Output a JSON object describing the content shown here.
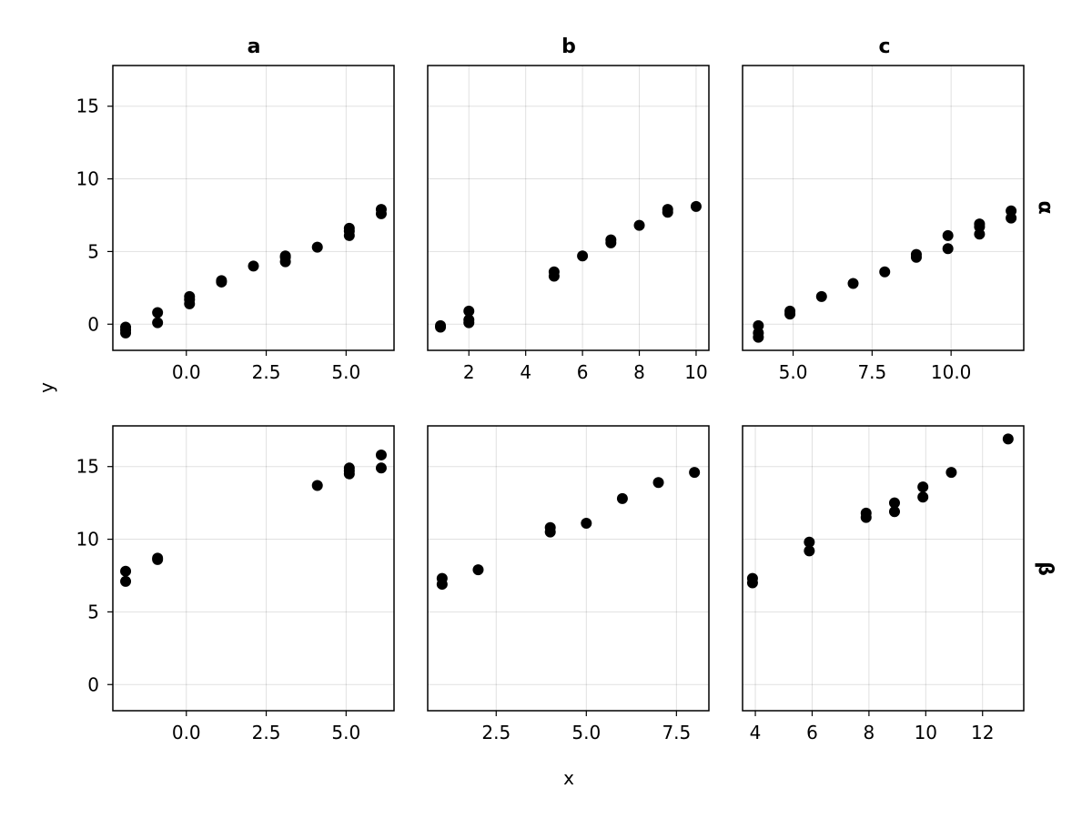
{
  "figure": {
    "xlabel": "x",
    "ylabel": "y",
    "column_titles": [
      "a",
      "b",
      "c"
    ],
    "row_titles": [
      "α",
      "β"
    ]
  },
  "chart_data": [
    {
      "type": "scatter",
      "column": "a",
      "row": "α",
      "xlim": [
        -2.3,
        6.5
      ],
      "ylim": [
        -1.8,
        17.8
      ],
      "xticks": [
        0.0,
        2.5,
        5.0
      ],
      "xtick_labels": [
        "0.0",
        "2.5",
        "5.0"
      ],
      "yticks": [
        0,
        5,
        10,
        15
      ],
      "ytick_labels": [
        "0",
        "5",
        "10",
        "15"
      ],
      "show_yticks": true,
      "grid": true,
      "x": [
        -1.9,
        -1.9,
        -1.9,
        -0.9,
        -0.9,
        0.1,
        0.1,
        0.1,
        1.1,
        1.1,
        2.1,
        3.1,
        3.1,
        3.1,
        4.1,
        5.1,
        5.1,
        5.1,
        6.1,
        6.1
      ],
      "y": [
        -0.6,
        -0.2,
        -0.4,
        0.1,
        0.8,
        1.4,
        1.7,
        1.9,
        2.9,
        3.0,
        4.0,
        4.3,
        4.6,
        4.7,
        5.3,
        6.1,
        6.4,
        6.6,
        7.6,
        7.9
      ]
    },
    {
      "type": "scatter",
      "column": "b",
      "row": "α",
      "xlim": [
        0.55,
        10.45
      ],
      "ylim": [
        -1.8,
        17.8
      ],
      "xticks": [
        2,
        4,
        6,
        8,
        10
      ],
      "xtick_labels": [
        "2",
        "4",
        "6",
        "8",
        "10"
      ],
      "yticks": [
        0,
        5,
        10,
        15
      ],
      "ytick_labels": [
        "0",
        "5",
        "10",
        "15"
      ],
      "show_yticks": false,
      "grid": true,
      "x": [
        1,
        1,
        2,
        2,
        2,
        5,
        5,
        6,
        7,
        7,
        8,
        9,
        9,
        10
      ],
      "y": [
        -0.2,
        -0.1,
        0.1,
        0.3,
        0.9,
        3.3,
        3.6,
        4.7,
        5.6,
        5.8,
        6.8,
        7.7,
        7.9,
        8.1
      ]
    },
    {
      "type": "scatter",
      "column": "c",
      "row": "α",
      "xlim": [
        3.4,
        12.3
      ],
      "ylim": [
        -1.8,
        17.8
      ],
      "xticks": [
        5.0,
        7.5,
        10.0
      ],
      "xtick_labels": [
        "5.0",
        "7.5",
        "10.0"
      ],
      "yticks": [
        0,
        5,
        10,
        15
      ],
      "ytick_labels": [
        "0",
        "5",
        "10",
        "15"
      ],
      "show_yticks": false,
      "grid": true,
      "x": [
        3.9,
        3.9,
        3.9,
        4.9,
        4.9,
        5.9,
        6.9,
        7.9,
        8.9,
        8.9,
        9.9,
        9.9,
        10.9,
        10.9,
        10.9,
        11.9,
        11.9
      ],
      "y": [
        -0.9,
        -0.6,
        -0.1,
        0.7,
        0.9,
        1.9,
        2.8,
        3.6,
        4.6,
        4.8,
        5.2,
        6.1,
        6.2,
        6.7,
        6.9,
        7.3,
        7.8
      ]
    },
    {
      "type": "scatter",
      "column": "a",
      "row": "β",
      "xlim": [
        -2.3,
        6.5
      ],
      "ylim": [
        -1.8,
        17.8
      ],
      "xticks": [
        0.0,
        2.5,
        5.0
      ],
      "xtick_labels": [
        "0.0",
        "2.5",
        "5.0"
      ],
      "yticks": [
        0,
        5,
        10,
        15
      ],
      "ytick_labels": [
        "0",
        "5",
        "10",
        "15"
      ],
      "show_yticks": true,
      "grid": true,
      "x": [
        -1.9,
        -1.9,
        -0.9,
        -0.9,
        4.1,
        5.1,
        5.1,
        5.1,
        6.1,
        6.1
      ],
      "y": [
        7.1,
        7.8,
        8.6,
        8.7,
        13.7,
        14.5,
        14.7,
        14.9,
        14.9,
        15.8
      ]
    },
    {
      "type": "scatter",
      "column": "b",
      "row": "β",
      "xlim": [
        0.6,
        8.4
      ],
      "ylim": [
        -1.8,
        17.8
      ],
      "xticks": [
        2.5,
        5.0,
        7.5
      ],
      "xtick_labels": [
        "2.5",
        "5.0",
        "7.5"
      ],
      "yticks": [
        0,
        5,
        10,
        15
      ],
      "ytick_labels": [
        "0",
        "5",
        "10",
        "15"
      ],
      "show_yticks": false,
      "grid": true,
      "x": [
        1,
        1,
        2,
        4,
        4,
        5,
        6,
        7,
        8
      ],
      "y": [
        6.9,
        7.3,
        7.9,
        10.5,
        10.8,
        11.1,
        12.8,
        13.9,
        14.6
      ]
    },
    {
      "type": "scatter",
      "column": "c",
      "row": "β",
      "xlim": [
        3.55,
        13.45
      ],
      "ylim": [
        -1.8,
        17.8
      ],
      "xticks": [
        4,
        6,
        8,
        10,
        12
      ],
      "xtick_labels": [
        "4",
        "6",
        "8",
        "10",
        "12"
      ],
      "yticks": [
        0,
        5,
        10,
        15
      ],
      "ytick_labels": [
        "0",
        "5",
        "10",
        "15"
      ],
      "show_yticks": false,
      "grid": true,
      "x": [
        3.9,
        3.9,
        5.9,
        5.9,
        7.9,
        7.9,
        8.9,
        8.9,
        9.9,
        9.9,
        10.9,
        12.9
      ],
      "y": [
        7.0,
        7.3,
        9.2,
        9.8,
        11.5,
        11.8,
        11.9,
        12.5,
        12.9,
        13.6,
        14.6,
        16.9
      ]
    }
  ]
}
